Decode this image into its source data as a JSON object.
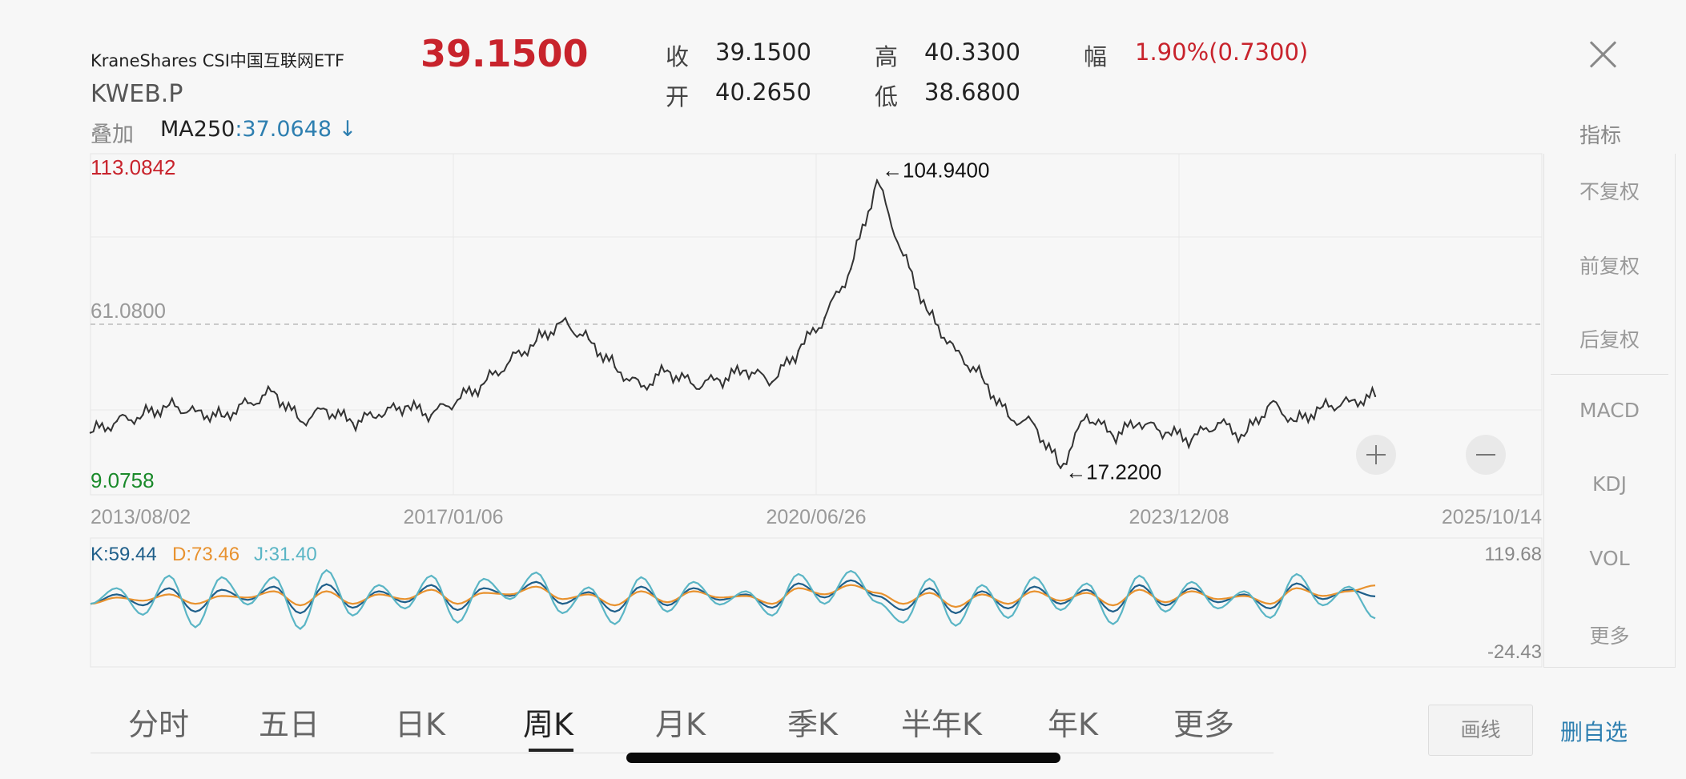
{
  "quote": {
    "name": "KraneShares CSI中国互联网ETF",
    "code": "KWEB.P",
    "price": "39.1500",
    "close_label": "收",
    "close_value": "39.1500",
    "open_label": "开",
    "open_value": "40.2650",
    "high_label": "高",
    "high_value": "40.3300",
    "low_label": "低",
    "low_value": "38.6800",
    "change_label": "幅",
    "change_value": "1.90%(0.7300)"
  },
  "overlay": {
    "label": "叠加",
    "ma_label": "MA250",
    "ma_value": ":37.0648 ↓"
  },
  "indicators_label": "指标",
  "side_menu": [
    {
      "label": "不复权",
      "active": true
    },
    {
      "label": "前复权",
      "active": false
    },
    {
      "label": "后复权",
      "active": false
    },
    {
      "label": "MACD",
      "active": false
    },
    {
      "label": "KDJ",
      "active": true
    },
    {
      "label": "VOL",
      "active": false
    },
    {
      "label": "更多",
      "active": false
    }
  ],
  "chart_data": [
    {
      "type": "line",
      "y_max_label": "113.0842",
      "y_min_label": "9.0758",
      "ref_label": "61.0800",
      "ylim": [
        9.0758,
        113.0842
      ],
      "ref_value": 61.08,
      "x_tick_labels": [
        "2013/08/02",
        "2017/01/06",
        "2020/06/26",
        "2023/12/08",
        "2025/10/14"
      ],
      "max_annotation": "←104.9400",
      "min_annotation": "←17.2200",
      "max_point": {
        "x": "2021/02",
        "y": 104.94
      },
      "min_point": {
        "x": "2022/10",
        "y": 17.22
      },
      "x": [
        "2013/08",
        "2013/12",
        "2014/03",
        "2014/06",
        "2014/09",
        "2014/12",
        "2015/03",
        "2015/06",
        "2015/09",
        "2015/12",
        "2016/03",
        "2016/06",
        "2016/09",
        "2016/12",
        "2017/03",
        "2017/06",
        "2017/09",
        "2017/12",
        "2018/03",
        "2018/06",
        "2018/09",
        "2018/12",
        "2019/03",
        "2019/06",
        "2019/09",
        "2019/12",
        "2020/03",
        "2020/06",
        "2020/09",
        "2020/12",
        "2021/02",
        "2021/04",
        "2021/07",
        "2021/10",
        "2022/01",
        "2022/04",
        "2022/07",
        "2022/10",
        "2023/01",
        "2023/04",
        "2023/07",
        "2023/10",
        "2024/01",
        "2024/04",
        "2024/07",
        "2024/10",
        "2025/01",
        "2025/04",
        "2025/07",
        "2025/10"
      ],
      "values": [
        28.0,
        31.5,
        33.5,
        36.5,
        34.5,
        33.0,
        37.0,
        40.5,
        31.5,
        35.0,
        31.0,
        33.5,
        36.0,
        33.5,
        38.0,
        43.0,
        50.0,
        56.0,
        62.0,
        56.5,
        48.0,
        42.0,
        47.0,
        42.5,
        44.0,
        47.0,
        43.5,
        53.0,
        63.0,
        78.0,
        104.94,
        82.0,
        64.0,
        53.0,
        45.0,
        33.0,
        30.5,
        17.22,
        33.5,
        27.0,
        31.0,
        28.0,
        26.0,
        31.0,
        27.0,
        37.0,
        31.5,
        36.0,
        37.5,
        39.15
      ]
    },
    {
      "type": "line",
      "title": "KDJ",
      "k_label": "K:59.44",
      "d_label": "D:73.46",
      "j_label": "J:31.40",
      "y_max_label": "119.68",
      "y_min_label": "-24.43",
      "ylim": [
        -24.43,
        119.68
      ],
      "series": [
        {
          "name": "K",
          "color": "#1f5f8a",
          "values": [
            50,
            62,
            48,
            70,
            40,
            68,
            55,
            72,
            38,
            75,
            45,
            66,
            52,
            74,
            42,
            70,
            60,
            78,
            50,
            65,
            40,
            72,
            48,
            70,
            55,
            62,
            45,
            76,
            58,
            80,
            60,
            42,
            70,
            38,
            66,
            44,
            72,
            50,
            68,
            40,
            74,
            48,
            70,
            52,
            62,
            44,
            76,
            56,
            68,
            59.44
          ]
        },
        {
          "name": "D",
          "color": "#e8922f",
          "values": [
            50,
            58,
            54,
            62,
            50,
            60,
            58,
            66,
            48,
            66,
            50,
            62,
            56,
            68,
            50,
            64,
            62,
            72,
            56,
            62,
            48,
            66,
            52,
            66,
            58,
            60,
            50,
            70,
            62,
            74,
            64,
            50,
            64,
            46,
            62,
            50,
            66,
            54,
            64,
            48,
            68,
            52,
            66,
            56,
            60,
            50,
            70,
            60,
            66,
            73.46
          ]
        },
        {
          "name": "J",
          "color": "#5ab5c5",
          "values": [
            50,
            70,
            36,
            86,
            20,
            84,
            49,
            84,
            18,
            93,
            35,
            74,
            44,
            86,
            26,
            82,
            56,
            90,
            38,
            71,
            24,
            84,
            40,
            78,
            49,
            66,
            35,
            88,
            50,
            92,
            52,
            26,
            82,
            22,
            74,
            32,
            84,
            42,
            76,
            24,
            86,
            40,
            78,
            44,
            66,
            32,
            88,
            48,
            72,
            31.4
          ]
        }
      ]
    }
  ],
  "tabs": [
    {
      "label": "分时",
      "active": false
    },
    {
      "label": "五日",
      "active": false
    },
    {
      "label": "日K",
      "active": false
    },
    {
      "label": "周K",
      "active": true
    },
    {
      "label": "月K",
      "active": false
    },
    {
      "label": "季K",
      "active": false
    },
    {
      "label": "半年K",
      "active": false
    },
    {
      "label": "年K",
      "active": false
    },
    {
      "label": "更多",
      "active": false
    }
  ],
  "draw_label": "画线",
  "watchlist_label": "删自选",
  "colors": {
    "red": "#c8232c",
    "green": "#1a8a2a",
    "blue": "#2e7fb0",
    "orange": "#e8922f",
    "cyan": "#5ab5c5"
  }
}
